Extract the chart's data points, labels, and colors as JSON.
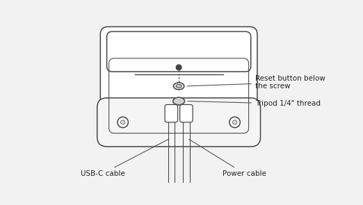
{
  "bg_color": "#f2f2f2",
  "device_color": "#ffffff",
  "line_color": "#444444",
  "ann_color": "#555555",
  "labels": {
    "reset": "Reset button below\nthe screw",
    "tripod": "Tripod 1/4\" thread",
    "usb": "USB-C cable",
    "power": "Power cable"
  },
  "figsize": [
    5.22,
    2.95
  ],
  "dpi": 100,
  "lw": 1.1,
  "fs": 7.5
}
